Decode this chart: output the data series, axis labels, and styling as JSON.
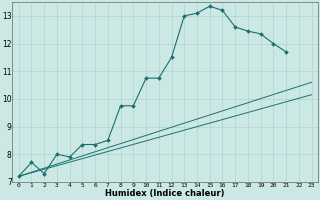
{
  "title": "",
  "xlabel": "Humidex (Indice chaleur)",
  "ylabel": "",
  "xlim": [
    -0.5,
    23.5
  ],
  "ylim": [
    7,
    13.5
  ],
  "xticks": [
    0,
    1,
    2,
    3,
    4,
    5,
    6,
    7,
    8,
    9,
    10,
    11,
    12,
    13,
    14,
    15,
    16,
    17,
    18,
    19,
    20,
    21,
    22,
    23
  ],
  "yticks": [
    7,
    8,
    9,
    10,
    11,
    12,
    13
  ],
  "bg_color": "#cce8e5",
  "line_color": "#1a7070",
  "grid_color": "#afd4d0",
  "series": [
    {
      "x": [
        0,
        1,
        2,
        3,
        4,
        5,
        6,
        7,
        8,
        9,
        10,
        11,
        12,
        13,
        14,
        15,
        16,
        17,
        18,
        19,
        20,
        21
      ],
      "y": [
        7.2,
        7.7,
        7.3,
        8.0,
        7.9,
        8.35,
        8.35,
        8.5,
        9.75,
        9.75,
        10.75,
        10.75,
        11.5,
        13.0,
        13.1,
        13.35,
        13.2,
        12.6,
        12.45,
        12.35,
        12.0,
        11.7
      ],
      "marker": "D",
      "markersize": 2.0,
      "linewidth": 0.8
    },
    {
      "x": [
        0,
        23
      ],
      "y": [
        7.2,
        10.6
      ],
      "marker": null,
      "markersize": 0,
      "linewidth": 0.7
    },
    {
      "x": [
        0,
        23
      ],
      "y": [
        7.2,
        10.15
      ],
      "marker": null,
      "markersize": 0,
      "linewidth": 0.7
    }
  ]
}
